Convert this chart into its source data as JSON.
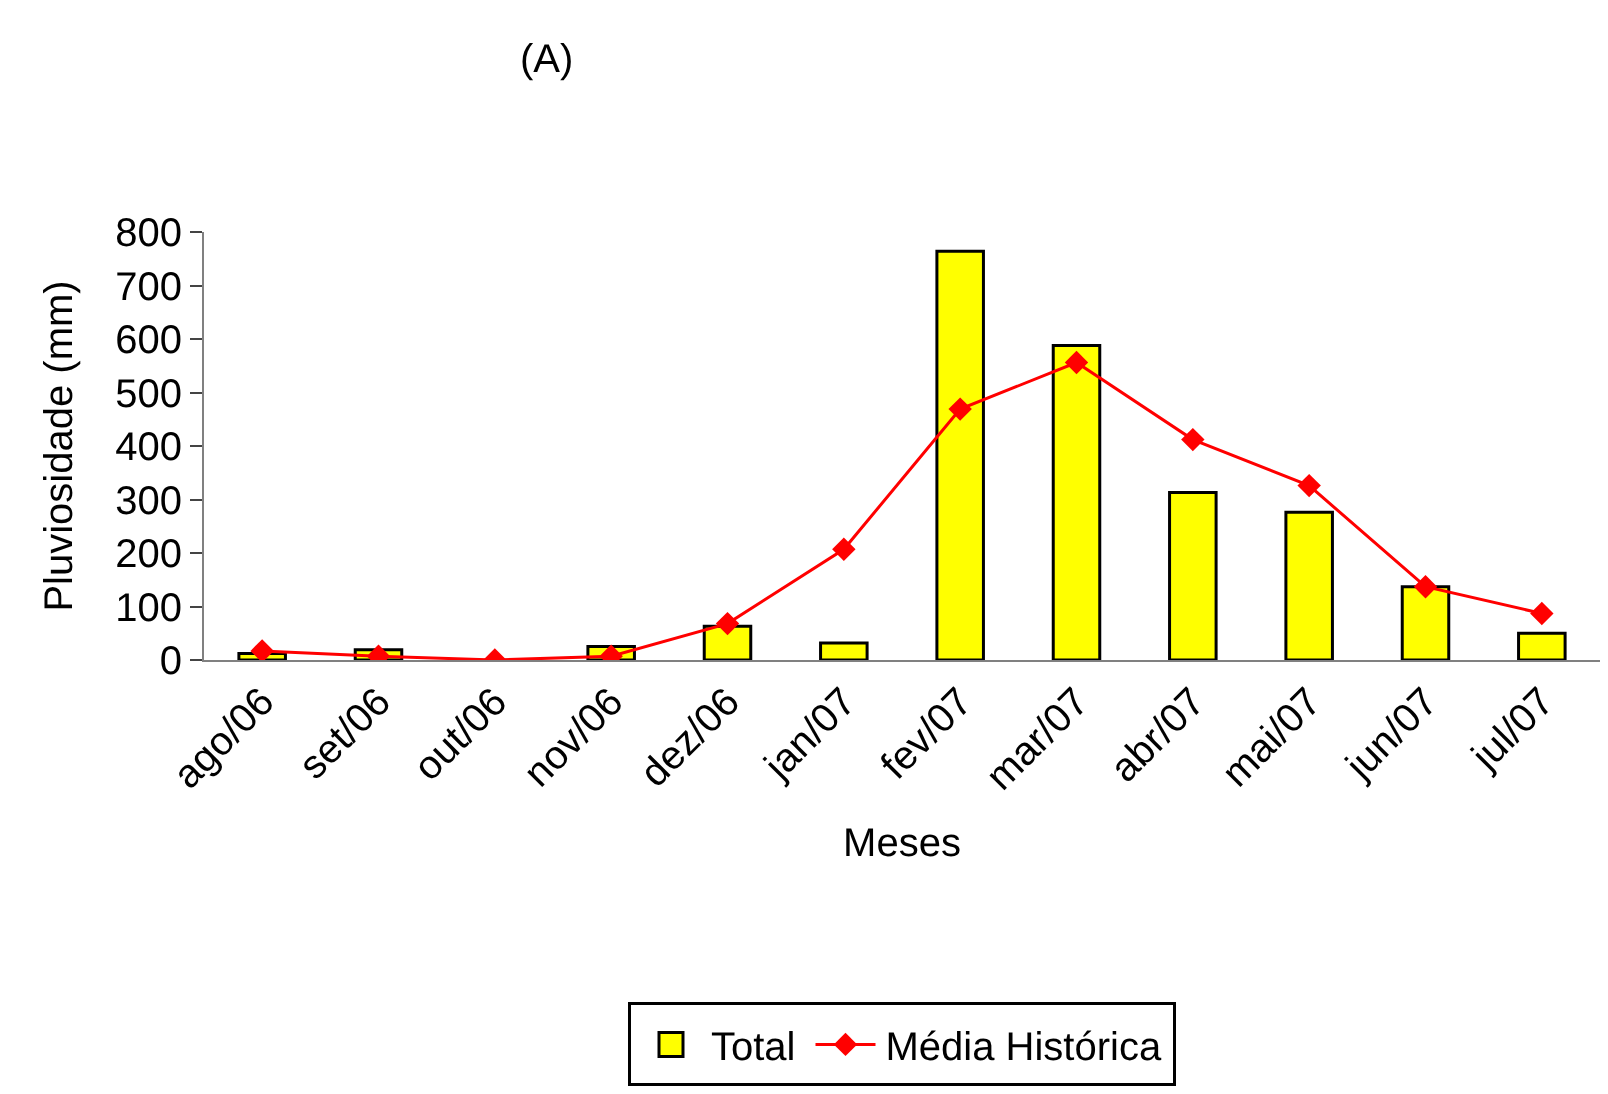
{
  "chart_data": {
    "type": "bar",
    "title": "(A)",
    "xlabel": "Meses",
    "ylabel": "Pluviosidade (mm)",
    "categories": [
      "ago/06",
      "set/06",
      "out/06",
      "nov/06",
      "dez/06",
      "jan/07",
      "fev/07",
      "mar/07",
      "abr/07",
      "mai/07",
      "jun/07",
      "jul/07"
    ],
    "series": [
      {
        "name": "Total",
        "color": "#ffff00",
        "values": [
          12,
          19,
          null,
          25,
          63,
          32,
          764,
          588,
          313,
          276,
          137,
          50
        ]
      },
      {
        "name": "Média Histórica",
        "type": "line",
        "color": "#ff0000",
        "marker": "diamond",
        "values": [
          17,
          7,
          0,
          7,
          68,
          207,
          469,
          556,
          412,
          326,
          137,
          87
        ]
      }
    ],
    "ylim": [
      0,
      800
    ],
    "yticks": [
      0,
      100,
      200,
      300,
      400,
      500,
      600,
      700,
      800
    ],
    "legend": "bottom"
  }
}
